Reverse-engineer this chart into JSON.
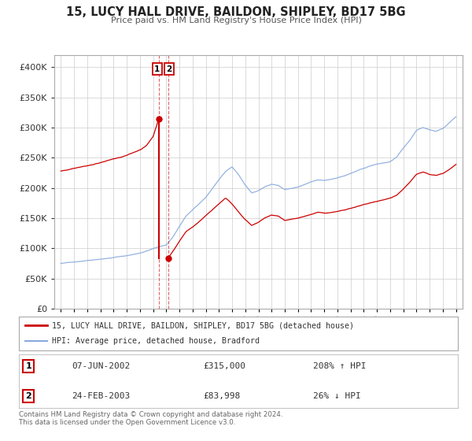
{
  "title": "15, LUCY HALL DRIVE, BAILDON, SHIPLEY, BD17 5BG",
  "subtitle": "Price paid vs. HM Land Registry's House Price Index (HPI)",
  "sale1_date_label": "07-JUN-2002",
  "sale1_price": 315000,
  "sale1_hpi_pct": "208% ↑ HPI",
  "sale2_date_label": "24-FEB-2003",
  "sale2_price": 83998,
  "sale2_hpi_pct": "26% ↓ HPI",
  "sale1_date_x": 2002.44,
  "sale2_date_x": 2003.14,
  "legend_line1": "15, LUCY HALL DRIVE, BAILDON, SHIPLEY, BD17 5BG (detached house)",
  "legend_line2": "HPI: Average price, detached house, Bradford",
  "footer": "Contains HM Land Registry data © Crown copyright and database right 2024.\nThis data is licensed under the Open Government Licence v3.0.",
  "red_color": "#cc0000",
  "blue_color": "#88aadd",
  "background_color": "#ffffff",
  "grid_color": "#cccccc",
  "ylim": [
    0,
    420000
  ],
  "xlim": [
    1994.5,
    2025.5
  ],
  "hpi_anchors_x": [
    1995.0,
    1995.5,
    1996.0,
    1996.5,
    1997.0,
    1997.5,
    1998.0,
    1998.5,
    1999.0,
    1999.5,
    2000.0,
    2000.5,
    2001.0,
    2001.5,
    2002.0,
    2002.5,
    2003.0,
    2003.5,
    2004.0,
    2004.5,
    2005.0,
    2005.5,
    2006.0,
    2006.5,
    2007.0,
    2007.5,
    2008.0,
    2008.5,
    2009.0,
    2009.5,
    2010.0,
    2010.5,
    2011.0,
    2011.5,
    2012.0,
    2012.5,
    2013.0,
    2013.5,
    2014.0,
    2014.5,
    2015.0,
    2015.5,
    2016.0,
    2016.5,
    2017.0,
    2017.5,
    2018.0,
    2018.5,
    2019.0,
    2019.5,
    2020.0,
    2020.5,
    2021.0,
    2021.5,
    2022.0,
    2022.5,
    2023.0,
    2023.5,
    2024.0,
    2024.5,
    2025.0
  ],
  "hpi_anchors_y": [
    75000,
    76000,
    77500,
    79000,
    80500,
    82000,
    83500,
    84500,
    86000,
    87500,
    89000,
    91000,
    93500,
    97000,
    101000,
    104000,
    107000,
    120000,
    138000,
    155000,
    165000,
    175000,
    185000,
    200000,
    215000,
    228000,
    235000,
    222000,
    205000,
    192000,
    196000,
    202000,
    207000,
    205000,
    198000,
    200000,
    202000,
    206000,
    210000,
    213000,
    212000,
    214000,
    217000,
    220000,
    224000,
    228000,
    232000,
    236000,
    239000,
    241000,
    243000,
    250000,
    265000,
    278000,
    295000,
    300000,
    296000,
    294000,
    298000,
    308000,
    318000
  ],
  "red_anchors_x": [
    1995.0,
    1995.5,
    1996.0,
    1996.5,
    1997.0,
    1997.5,
    1998.0,
    1998.5,
    1999.0,
    1999.5,
    2000.0,
    2000.5,
    2001.0,
    2001.5,
    2002.0,
    2002.44,
    2003.14,
    2003.5,
    2004.0,
    2004.5,
    2005.0,
    2005.5,
    2006.0,
    2006.5,
    2007.0,
    2007.5,
    2008.0,
    2008.5,
    2009.0,
    2009.5,
    2010.0,
    2010.5,
    2011.0,
    2011.5,
    2012.0,
    2012.5,
    2013.0,
    2013.5,
    2014.0,
    2014.5,
    2015.0,
    2015.5,
    2016.0,
    2016.5,
    2017.0,
    2017.5,
    2018.0,
    2018.5,
    2019.0,
    2019.5,
    2020.0,
    2020.5,
    2021.0,
    2021.5,
    2022.0,
    2022.5,
    2023.0,
    2023.5,
    2024.0,
    2024.5,
    2025.0
  ],
  "red_anchors_y": [
    228000,
    230000,
    233000,
    236000,
    238000,
    240000,
    243000,
    246000,
    249000,
    251000,
    254000,
    258000,
    263000,
    270000,
    285000,
    315000,
    83998,
    95000,
    112000,
    128000,
    136000,
    145000,
    155000,
    165000,
    175000,
    185000,
    175000,
    162000,
    150000,
    140000,
    145000,
    152000,
    157000,
    155000,
    148000,
    150000,
    152000,
    155000,
    158000,
    161000,
    160000,
    161000,
    163000,
    165000,
    168000,
    171000,
    174000,
    177000,
    179000,
    181000,
    183000,
    188000,
    198000,
    209000,
    222000,
    226000,
    222000,
    221000,
    224000,
    231000,
    239000
  ]
}
